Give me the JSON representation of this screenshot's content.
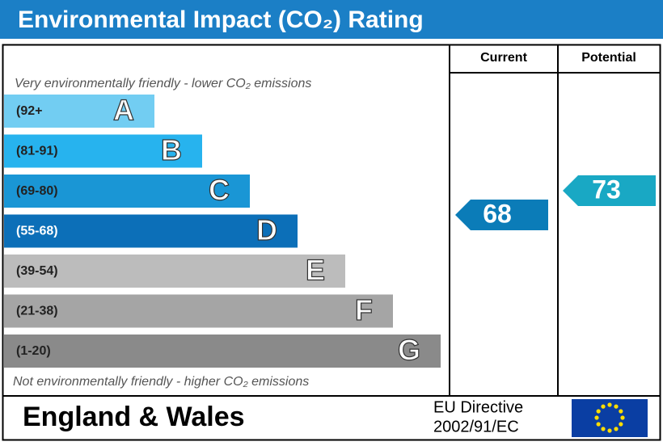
{
  "header": {
    "title": "Environmental Impact (CO₂) Rating"
  },
  "columns": {
    "current": "Current",
    "potential": "Potential"
  },
  "top_note": "Very environmentally friendly - lower CO₂ emissions",
  "bottom_note": "Not environmentally friendly - higher CO₂ emissions",
  "bands": [
    {
      "range": "(92+",
      "letter": "A"
    },
    {
      "range": "(81-91)",
      "letter": "B"
    },
    {
      "range": "(69-80)",
      "letter": "C"
    },
    {
      "range": "(55-68)",
      "letter": "D"
    },
    {
      "range": "(39-54)",
      "letter": "E"
    },
    {
      "range": "(21-38)",
      "letter": "F"
    },
    {
      "range": "(1-20)",
      "letter": "G"
    }
  ],
  "current": 68,
  "potential": 73,
  "footer": {
    "region": "England & Wales",
    "directive_line1": "EU Directive",
    "directive_line2": "2002/91/EC"
  }
}
